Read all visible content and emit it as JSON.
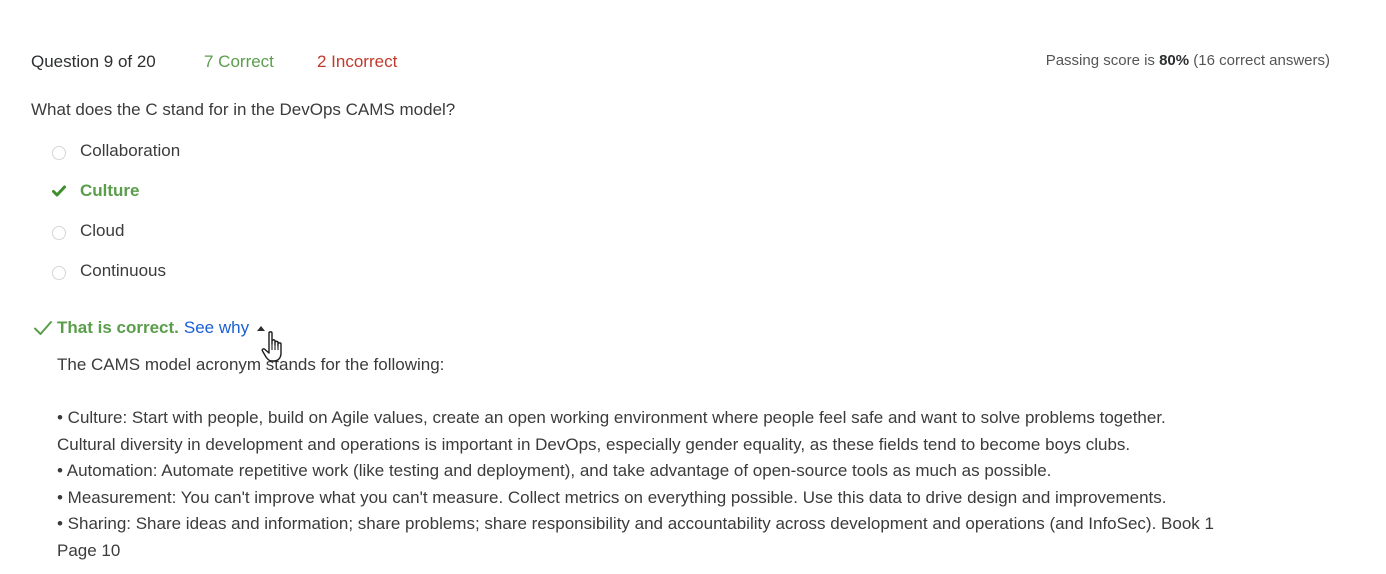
{
  "header": {
    "question_counter": "Question 9 of 20",
    "correct_count": "7 Correct",
    "incorrect_count": "2 Incorrect",
    "passing_prefix": "Passing score is ",
    "passing_percent": "80%",
    "passing_suffix": " (16 correct answers)"
  },
  "question": {
    "text": "What does the C stand for in the DevOps CAMS model?"
  },
  "options": [
    {
      "label": "Collaboration",
      "selected": false
    },
    {
      "label": "Culture",
      "selected": true
    },
    {
      "label": "Cloud",
      "selected": false
    },
    {
      "label": "Continuous",
      "selected": false
    }
  ],
  "feedback": {
    "title": "That is correct.",
    "see_why": "See why",
    "intro": "The CAMS model acronym stands for the following:",
    "lines": [
      "• Culture: Start with people, build on Agile values, create an open working environment where people feel safe and want to solve problems together.",
      "Cultural diversity in development and operations is important in DevOps, especially gender equality, as these fields tend to become boys clubs.",
      "• Automation: Automate repetitive work (like testing and deployment), and take advantage of open-source tools as much as possible.",
      "• Measurement: You can't improve what you can't measure. Collect metrics on everything possible. Use this data to drive design and improvements.",
      "• Sharing: Share ideas and information; share problems; share responsibility and accountability across development and operations (and InfoSec). Book 1",
      "Page 10"
    ]
  },
  "colors": {
    "correct": "#5a9e4b",
    "incorrect": "#c0392b",
    "link": "#1a5fd6"
  },
  "icons": {
    "selected_option": "checkmark-icon",
    "feedback": "checkmark-icon",
    "toggle": "caret-up-icon",
    "cursor": "hand-pointer-icon"
  }
}
